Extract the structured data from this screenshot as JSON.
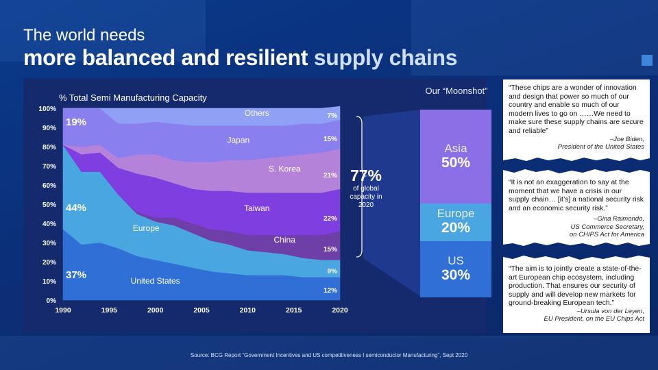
{
  "header": {
    "title_line1": "The world needs",
    "title_line2_main": "more balanced and resilient ",
    "title_line2_accent": "supply chains"
  },
  "chart_data": {
    "type": "area",
    "title": "% Total Semi Manufacturing Capacity",
    "x": [
      1990,
      1992,
      1994,
      1996,
      1998,
      2000,
      2002,
      2004,
      2006,
      2008,
      2010,
      2012,
      2014,
      2016,
      2018,
      2020
    ],
    "x_ticks": [
      "1990",
      "1995",
      "2000",
      "2005",
      "2010",
      "2015",
      "2020"
    ],
    "y_ticks": [
      "0%",
      "10%",
      "20%",
      "30%",
      "40%",
      "50%",
      "60%",
      "70%",
      "80%",
      "90%",
      "100%"
    ],
    "ylim": [
      0,
      100
    ],
    "stacked": true,
    "series": [
      {
        "name": "United States",
        "color": "#2f6fd6",
        "values": [
          37,
          29,
          30,
          27,
          23,
          21,
          19,
          17,
          15,
          14,
          13,
          13,
          13,
          12,
          12,
          12
        ]
      },
      {
        "name": "Europe",
        "color": "#4aa6e0",
        "values": [
          44,
          38,
          37,
          28,
          22,
          20,
          20,
          18,
          16,
          15,
          13,
          12,
          11,
          10,
          9,
          9
        ]
      },
      {
        "name": "China",
        "color": "#6f3fa8",
        "values": [
          0,
          0,
          0,
          0,
          1,
          2,
          4,
          5,
          6,
          7,
          8,
          9,
          10,
          12,
          13,
          15
        ]
      },
      {
        "name": "Taiwan",
        "color": "#7f3fe0",
        "values": [
          0,
          9,
          10,
          14,
          20,
          21,
          18,
          18,
          20,
          21,
          22,
          22,
          22,
          22,
          22,
          22
        ]
      },
      {
        "name": "S. Korea",
        "color": "#b582d9",
        "values": [
          0,
          4,
          4,
          5,
          10,
          12,
          12,
          14,
          15,
          16,
          17,
          18,
          19,
          20,
          21,
          21
        ]
      },
      {
        "name": "Japan",
        "color": "#8a7fef",
        "values": [
          19,
          20,
          19,
          18,
          16,
          17,
          19,
          19,
          19,
          18,
          18,
          17,
          16,
          16,
          15,
          15
        ]
      },
      {
        "name": "Others",
        "color": "#8fa0f5",
        "values": [
          0,
          0,
          0,
          8,
          8,
          7,
          8,
          9,
          9,
          9,
          9,
          9,
          9,
          8,
          8,
          7
        ]
      }
    ],
    "series_labels": [
      {
        "name": "United States",
        "x": 2000,
        "y": 8.5
      },
      {
        "name": "Europe",
        "x": 1999,
        "y": 36
      },
      {
        "name": "China",
        "x": 2014,
        "y": 30
      },
      {
        "name": "Taiwan",
        "x": 2011,
        "y": 46.5
      },
      {
        "name": "S. Korea",
        "x": 2014,
        "y": 67
      },
      {
        "name": "Japan",
        "x": 2009,
        "y": 82
      },
      {
        "name": "Others",
        "x": 2011,
        "y": 96
      }
    ],
    "start_labels": [
      {
        "text": "37%",
        "y": 11.5
      },
      {
        "text": "44%",
        "y": 46.5
      },
      {
        "text": "19%",
        "y": 91
      }
    ],
    "end_labels": [
      {
        "text": "12%",
        "y": 5
      },
      {
        "text": "9%",
        "y": 15
      },
      {
        "text": "15%",
        "y": 26.5
      },
      {
        "text": "22%",
        "y": 42.5
      },
      {
        "text": "21%",
        "y": 65
      },
      {
        "text": "15%",
        "y": 84
      },
      {
        "text": "7%",
        "y": 96
      }
    ]
  },
  "brace": {
    "value": "77%",
    "caption": "of global capacity in 2020"
  },
  "moonshot": {
    "title": "Our “Moonshot”",
    "bars": [
      {
        "region": "Asia",
        "pct": "50%",
        "value": 50,
        "color": "#8a6fe6"
      },
      {
        "region": "Europe",
        "pct": "20%",
        "value": 20,
        "color": "#4aa6e0"
      },
      {
        "region": "US",
        "pct": "30%",
        "value": 30,
        "color": "#2f6fd6"
      }
    ]
  },
  "quotes": [
    {
      "text": "“These chips are a wonder of innovation and design that power so much of our country and enable so much of our modern lives to go on ……We need to make sure these supply chains are secure and reliable”",
      "attr1": "–Joe Biden,",
      "attr2": "President of the United States"
    },
    {
      "text": "“It is not an exaggeration to say at the moment that we have a crisis in our supply chain… [it’s] a national security risk and an economic security risk.”",
      "attr1": "–Gina Raimondo,",
      "attr2": "US Commerce Secretary,",
      "attr3": "on CHIPS Act for America"
    },
    {
      "text": "“The aim is to jointly create a state-of-the-art European chip ecosystem, including production. That ensures our security of supply and will develop new markets for ground-breaking European tech.”",
      "attr1": "–Ursula von der Leyen,",
      "attr2": "EU President, on the EU Chips Act"
    }
  ],
  "footer": {
    "source": "Source:  BCG Report “Government Incentives and US competitiveness I semiconductor Manufacturing”, Sept 2020"
  }
}
